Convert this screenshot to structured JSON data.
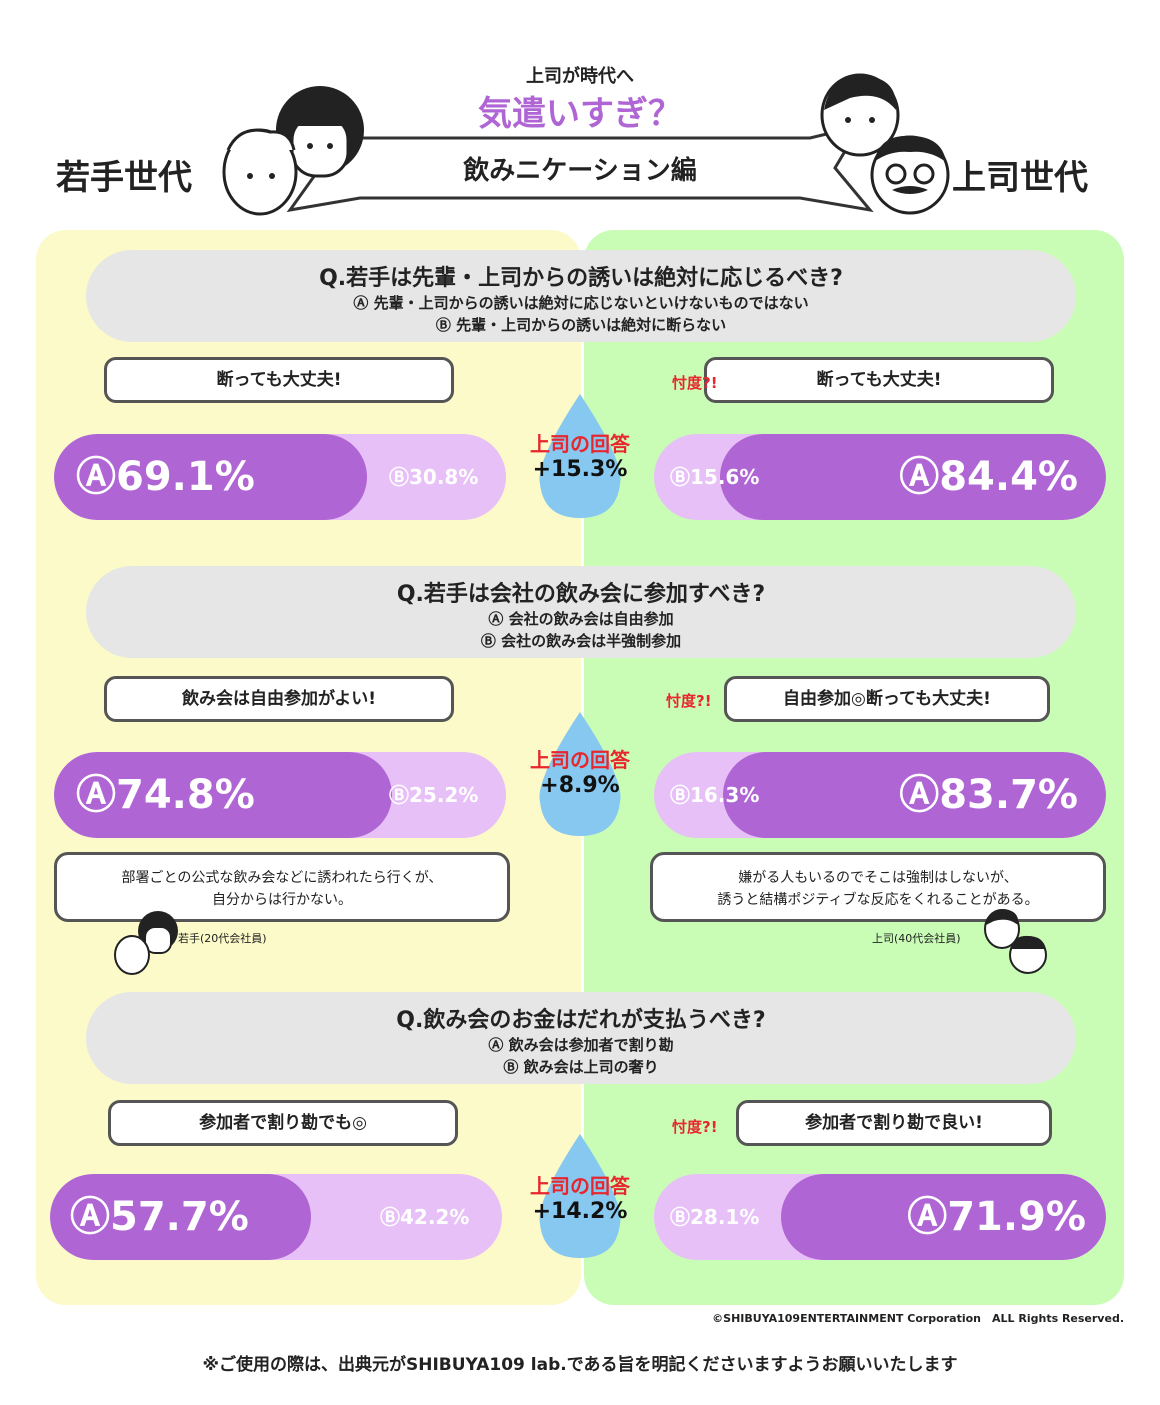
{
  "header": {
    "kicker": "上司が時代へ",
    "headline": "気遣いすぎ？",
    "banner": "飲みニケーション編",
    "left_label": "若手世代",
    "right_label": "上司世代"
  },
  "questions": [
    {
      "title": "Q.若手は先輩・上司からの誘いは絶対に応じるべき?",
      "option_a": "Ⓐ 先輩・上司からの誘いは絶対に応じないといけないものではない",
      "option_b": "Ⓑ 先輩・上司からの誘いは絶対に断らない",
      "young_bubble": "断っても大丈夫!",
      "boss_bubble": "断っても大丈夫!",
      "sontaku": "忖度?!",
      "drop_title": "上司の回答",
      "drop_value": "+15.3%",
      "young_a": "69.1%",
      "young_b": "30.8%",
      "boss_a": "84.4%",
      "boss_b": "15.6%"
    },
    {
      "title": "Q.若手は会社の飲み会に参加すべき?",
      "option_a": "Ⓐ 会社の飲み会は自由参加",
      "option_b": "Ⓑ 会社の飲み会は半強制参加",
      "young_bubble": "飲み会は自由参加がよい!",
      "boss_bubble": "自由参加◎断っても大丈夫!",
      "sontaku": "忖度?!",
      "drop_title": "上司の回答",
      "drop_value": "+8.9%",
      "young_a": "74.8%",
      "young_b": "25.2%",
      "boss_a": "83.7%",
      "boss_b": "16.3%"
    },
    {
      "title": "Q.飲み会のお金はだれが支払うべき?",
      "option_a": "Ⓐ 飲み会は参加者で割り勘",
      "option_b": "Ⓑ 飲み会は上司の奢り",
      "young_bubble": "参加者で割り勘でも◎",
      "boss_bubble": "参加者で割り勘で良い!",
      "sontaku": "忖度?!",
      "drop_title": "上司の回答",
      "drop_value": "+14.2%",
      "young_a": "57.7%",
      "young_b": "42.2%",
      "boss_a": "71.9%",
      "boss_b": "28.1%"
    }
  ],
  "comments": {
    "young_line1": "部署ごとの公式な飲み会などに誘われたら行くが、",
    "young_line2": "自分からは行かない。",
    "young_who": "若手(20代会社員)",
    "boss_line1": "嫌がる人もいるのでそこは強制はしないが、",
    "boss_line2": "誘うと結構ポジティブな反応をくれることがある。",
    "boss_who": "上司(40代会社員)"
  },
  "labels": {
    "a_mark": "Ⓐ",
    "b_mark": "Ⓑ"
  },
  "footer": {
    "copyright": "©SHIBUYA109ENTERTAINMENT Corporation　ALL Rights Reserved.",
    "note": "※ご使用の際は、出典元がSHIBUYA109 lab.である旨を明記くださいますようお願いいたします"
  },
  "colors": {
    "main_purple": "#b065d4",
    "light_purple": "#e7c0f7",
    "accent_red": "#e8262e",
    "left_bg": "#fbfac8",
    "right_bg": "#c9fdb6",
    "drop_blue": "#86c8f0"
  },
  "chart_data": [
    {
      "type": "bar",
      "title": "Q.若手は先輩・上司からの誘いは絶対に応じるべき?",
      "categories": [
        "若手世代",
        "上司世代"
      ],
      "series": [
        {
          "name": "Ⓐ",
          "values": [
            69.1,
            84.4
          ]
        },
        {
          "name": "Ⓑ",
          "values": [
            30.8,
            15.6
          ]
        }
      ]
    },
    {
      "type": "bar",
      "title": "Q.若手は会社の飲み会に参加すべき?",
      "categories": [
        "若手世代",
        "上司世代"
      ],
      "series": [
        {
          "name": "Ⓐ",
          "values": [
            74.8,
            83.7
          ]
        },
        {
          "name": "Ⓑ",
          "values": [
            25.2,
            16.3
          ]
        }
      ]
    },
    {
      "type": "bar",
      "title": "Q.飲み会のお金はだれが支払うべき?",
      "categories": [
        "若手世代",
        "上司世代"
      ],
      "series": [
        {
          "name": "Ⓐ",
          "values": [
            57.7,
            71.9
          ]
        },
        {
          "name": "Ⓑ",
          "values": [
            42.2,
            28.1
          ]
        }
      ]
    }
  ]
}
